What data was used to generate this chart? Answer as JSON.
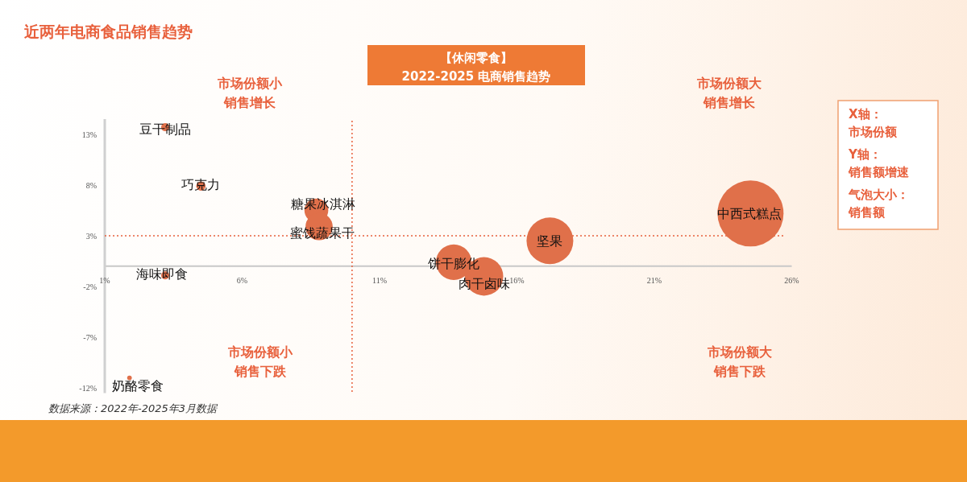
{
  "chart_data": {
    "type": "bubble",
    "title": "近两年电商食品销售趋势",
    "subtitle": "【休闲零食】2022-2025 电商销售趋势",
    "xlabel": "X轴：市场份额",
    "ylabel": "Y轴：销售额增速",
    "series": [
      {
        "name": "豆干制品",
        "color": "#e0704a",
        "x": [
          3.2
        ],
        "values": [
          13.7
        ],
        "sizes": [
          0.015
        ]
      },
      {
        "name": "巧克力",
        "color": "#e0704a",
        "x": [
          4.5
        ],
        "values": [
          7.9
        ],
        "sizes": [
          0.02
        ]
      },
      {
        "name": "糖果冰淇淋",
        "color": "#e0704a",
        "x": [
          8.7
        ],
        "values": [
          5.5
        ],
        "sizes": [
          0.13
        ]
      },
      {
        "name": "蜜饯蔬果干",
        "color": "#e0704a",
        "x": [
          8.8
        ],
        "values": [
          3.9
        ],
        "sizes": [
          0.17
        ]
      },
      {
        "name": "海味即食",
        "color": "#e0704a",
        "x": [
          3.2
        ],
        "values": [
          -0.9
        ],
        "sizes": [
          0.015
        ]
      },
      {
        "name": "奶酪零食",
        "color": "#e0704a",
        "x": [
          1.9
        ],
        "values": [
          -11.0
        ],
        "sizes": [
          0.005
        ]
      },
      {
        "name": "饼干膨化",
        "color": "#e0704a",
        "x": [
          13.7
        ],
        "values": [
          0.4
        ],
        "sizes": [
          0.29
        ]
      },
      {
        "name": "肉干卤味",
        "color": "#e0704a",
        "x": [
          14.8
        ],
        "values": [
          -1.0
        ],
        "sizes": [
          0.34
        ]
      },
      {
        "name": "坚果",
        "color": "#e0704a",
        "x": [
          17.2
        ],
        "values": [
          2.5
        ],
        "sizes": [
          0.5
        ]
      },
      {
        "name": "中西式糕点",
        "color": "#e0704a",
        "x": [
          24.5
        ],
        "values": [
          5.2
        ],
        "sizes": [
          1
        ]
      }
    ],
    "xlim": [
      1,
      26
    ],
    "ylim": [
      -12.5,
      14.5
    ],
    "xticks": [
      {
        "value": 1,
        "label": "1%"
      },
      {
        "value": 6,
        "label": "6%"
      },
      {
        "value": 11,
        "label": "11%"
      },
      {
        "value": 16,
        "label": "16%"
      },
      {
        "value": 21,
        "label": "21%"
      },
      {
        "value": 26,
        "label": "26%"
      }
    ],
    "yticks": [
      {
        "value": 13,
        "label": "13%"
      },
      {
        "value": 8,
        "label": "8%"
      },
      {
        "value": 3,
        "label": "3%"
      },
      {
        "value": -2,
        "label": "-2%"
      },
      {
        "value": -7,
        "label": "-7%"
      },
      {
        "value": -12,
        "label": "-12%"
      }
    ],
    "ref_lines": [
      {
        "axis": "x",
        "value": 10,
        "color": "#e8603c",
        "line_style": "dotted"
      },
      {
        "axis": "y",
        "value": 3,
        "color": "#e8603c",
        "line_style": "dotted"
      }
    ],
    "annotations": [
      "市场份额小",
      "销售增长",
      "市场份额大",
      "销售增长",
      "市场份额小",
      "销售下跌",
      "市场份额大",
      "销售下跌",
      "数据来源：2022年-2025年3月数据",
      "气泡大小：销售额"
    ]
  }
}
